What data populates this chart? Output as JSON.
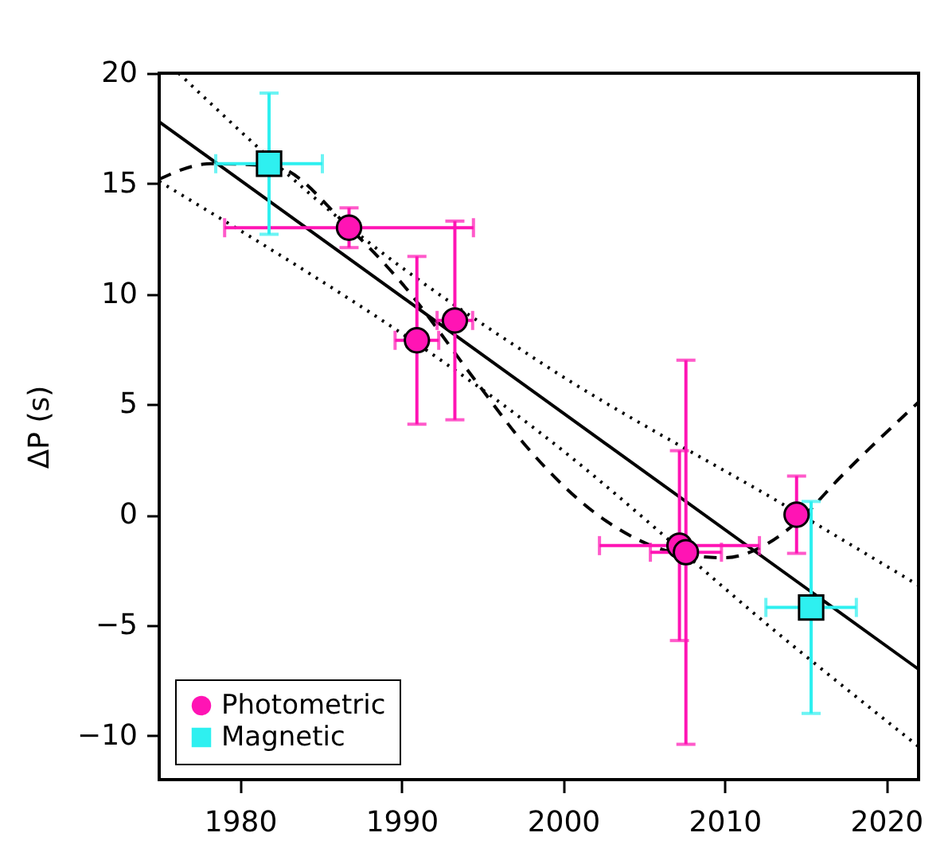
{
  "chart_data": {
    "type": "scatter",
    "ylabel": "ΔP (s)",
    "xlim": [
      1975,
      2022
    ],
    "xticks": [
      1980,
      1990,
      2000,
      2010,
      2020
    ],
    "ylim": [
      -12,
      20
    ],
    "yticks": [
      -10,
      -5,
      0,
      5,
      10,
      15,
      20
    ],
    "grid": false,
    "legend": "bottom left",
    "series": [
      {
        "type": "line",
        "color": "#000000",
        "line_style": "solid",
        "x": [
          1975,
          2022
        ],
        "values": [
          17.8,
          -7.0
        ]
      },
      {
        "type": "line",
        "color": "#000000",
        "line_style": "dotted",
        "x": [
          1976.2,
          1987,
          1998.6,
          2014,
          2022
        ],
        "values": [
          20,
          12.9,
          6.9,
          0.3,
          -3.2
        ]
      },
      {
        "type": "line",
        "color": "#000000",
        "line_style": "dotted",
        "x": [
          1975,
          1998.6,
          2014,
          2022
        ],
        "values": [
          15.1,
          3.7,
          -5.8,
          -10.5
        ]
      },
      {
        "type": "line",
        "color": "#000000",
        "line_style": "dashed",
        "x": [
          1975,
          1978.2,
          1982,
          1986.75,
          1990,
          1994.6,
          1997.6,
          2002.5,
          2007.1,
          2010,
          2012.3,
          2014.6,
          2017.2,
          2022
        ],
        "values": [
          15.2,
          15.9,
          15.8,
          13.0,
          10.5,
          6.05,
          3.2,
          -0.2,
          -1.75,
          -1.95,
          -1.45,
          -0.25,
          1.73,
          5.1
        ]
      },
      {
        "name": "Photometric",
        "color": "#ff14b4",
        "marker": "circle",
        "x": [
          1986.75,
          1990.95,
          1993.3,
          2007.2,
          2007.6,
          2014.45
        ],
        "values": [
          13.0,
          7.9,
          8.8,
          -1.4,
          -1.7,
          0.0
        ],
        "errors": [
          0.9,
          3.8,
          4.5,
          4.3,
          8.7,
          1.75
        ],
        "xerrors": [
          7.7,
          1.35,
          1.1,
          4.95,
          2.2,
          null
        ]
      },
      {
        "name": "Magnetic",
        "color": "#2ef0f0",
        "marker": "square",
        "x": [
          1981.8,
          2015.35
        ],
        "values": [
          15.9,
          -4.2
        ],
        "errors": [
          3.2,
          4.8
        ],
        "xerrors": [
          3.3,
          2.8
        ]
      }
    ]
  }
}
